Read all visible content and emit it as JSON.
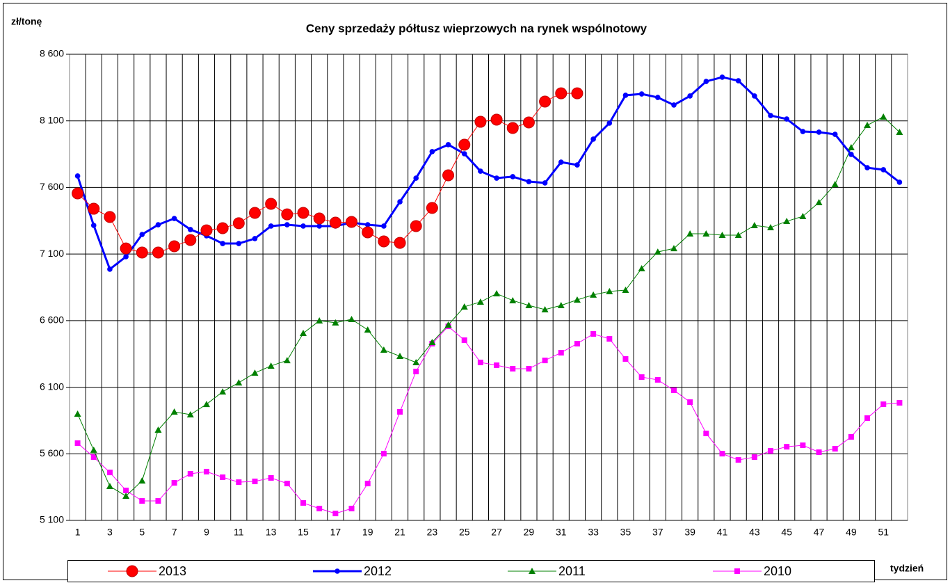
{
  "chart_data": {
    "type": "line",
    "title": "Ceny sprzedaży półtusz wieprzowych na rynek wspólnotowy",
    "y_label": "zł/tonę",
    "x_label": "tydzień",
    "categories": [
      1,
      null,
      3,
      null,
      5,
      null,
      7,
      null,
      9,
      null,
      11,
      null,
      13,
      null,
      15,
      null,
      17,
      null,
      19,
      null,
      21,
      null,
      23,
      null,
      25,
      null,
      27,
      null,
      29,
      null,
      31,
      null,
      33,
      null,
      35,
      null,
      37,
      null,
      39,
      null,
      41,
      null,
      43,
      null,
      45,
      null,
      47,
      null,
      49,
      null,
      51,
      null
    ],
    "ylim": [
      5100,
      8600
    ],
    "yticks": [
      {
        "value": 5100,
        "label": "5 100"
      },
      {
        "value": 5600,
        "label": "5 600"
      },
      {
        "value": 6100,
        "label": "6 100"
      },
      {
        "value": 6600,
        "label": "6 600"
      },
      {
        "value": 7100,
        "label": "7 100"
      },
      {
        "value": 7600,
        "label": "7 600"
      },
      {
        "value": 8100,
        "label": "8 100"
      },
      {
        "value": 8600,
        "label": "8 600"
      }
    ],
    "grid": true,
    "legend": "bottom",
    "series": [
      {
        "name": "2013",
        "color": "#ff0000",
        "marker": "circle-large",
        "values": [
          7555,
          7440,
          7378,
          7142,
          7111,
          7111,
          7158,
          7205,
          7278,
          7294,
          7331,
          7409,
          7477,
          7398,
          7409,
          7367,
          7336,
          7341,
          7263,
          7195,
          7184,
          7310,
          7446,
          7691,
          7921,
          8093,
          8109,
          8046,
          8088,
          8245,
          8307,
          8307,
          null,
          null,
          null,
          null,
          null,
          null,
          null,
          null,
          null,
          null,
          null,
          null,
          null,
          null,
          null,
          null,
          null,
          null,
          null,
          null
        ]
      },
      {
        "name": "2012",
        "color": "#0000ff",
        "marker": "circle",
        "values": [
          7686,
          7315,
          6986,
          7080,
          7247,
          7320,
          7367,
          7284,
          7237,
          7179,
          7179,
          7216,
          7310,
          7320,
          7310,
          7310,
          7310,
          7336,
          7320,
          7310,
          7492,
          7670,
          7869,
          7921,
          7853,
          7722,
          7670,
          7681,
          7644,
          7634,
          7790,
          7769,
          7963,
          8083,
          8292,
          8302,
          8276,
          8219,
          8287,
          8396,
          8428,
          8401,
          8287,
          8140,
          8114,
          8020,
          8015,
          7999,
          7848,
          7748,
          7733,
          7639
        ]
      },
      {
        "name": "2011",
        "color": "#008000",
        "marker": "triangle",
        "values": [
          5899,
          5628,
          5356,
          5283,
          5398,
          5779,
          5915,
          5894,
          5972,
          6066,
          6134,
          6207,
          6260,
          6301,
          6505,
          6599,
          6584,
          6610,
          6531,
          6380,
          6333,
          6286,
          6437,
          6568,
          6704,
          6740,
          6803,
          6751,
          6714,
          6683,
          6714,
          6756,
          6793,
          6819,
          6829,
          6991,
          7116,
          7142,
          7252,
          7252,
          7242,
          7242,
          7315,
          7299,
          7346,
          7383,
          7487,
          7623,
          7900,
          8067,
          8130,
          8015
        ]
      },
      {
        "name": "2010",
        "color": "#ff00ff",
        "marker": "square",
        "values": [
          5680,
          5575,
          5460,
          5325,
          5246,
          5246,
          5382,
          5450,
          5466,
          5424,
          5387,
          5393,
          5419,
          5377,
          5231,
          5189,
          5152,
          5189,
          5377,
          5601,
          5915,
          6218,
          6427,
          6557,
          6453,
          6286,
          6265,
          6239,
          6239,
          6301,
          6359,
          6427,
          6500,
          6463,
          6312,
          6176,
          6155,
          6077,
          5988,
          5753,
          5601,
          5554,
          5575,
          5622,
          5653,
          5664,
          5612,
          5638,
          5727,
          5868,
          5972,
          5983
        ]
      }
    ]
  }
}
